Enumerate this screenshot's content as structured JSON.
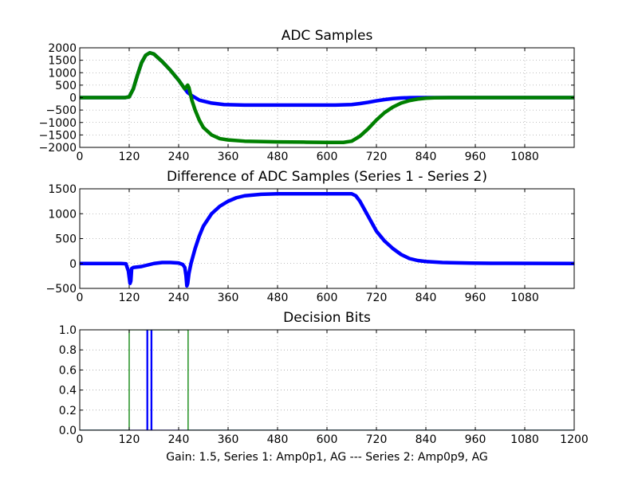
{
  "footer": "Gain: 1.5, Series 1: Amp0p1, AG --- Series 2: Amp0p9, AG",
  "colors": {
    "series1": "#0000ff",
    "series2": "#008000",
    "grid": "#808080",
    "axes": "#000000"
  },
  "chart_data": [
    {
      "id": "adc",
      "type": "line",
      "title": "ADC Samples",
      "xlim": [
        0,
        1200
      ],
      "ylim": [
        -2000,
        2000
      ],
      "xticks": [
        0,
        120,
        240,
        360,
        480,
        600,
        720,
        840,
        960,
        1080
      ],
      "yticks": [
        -2000,
        -1500,
        -1000,
        -500,
        0,
        500,
        1000,
        1500,
        2000
      ],
      "grid": true,
      "series": [
        {
          "name": "Series 1",
          "color": "#0000ff",
          "x": [
            0,
            110,
            120,
            130,
            140,
            150,
            160,
            170,
            180,
            200,
            220,
            240,
            255,
            262,
            270,
            290,
            320,
            350,
            400,
            480,
            550,
            620,
            660,
            680,
            700,
            720,
            740,
            760,
            780,
            800,
            820,
            840,
            860,
            900,
            1000,
            1200
          ],
          "y": [
            0,
            0,
            30,
            350,
            900,
            1400,
            1700,
            1800,
            1750,
            1450,
            1100,
            700,
            350,
            200,
            100,
            -100,
            -220,
            -280,
            -300,
            -300,
            -300,
            -300,
            -280,
            -240,
            -190,
            -130,
            -80,
            -40,
            -15,
            -5,
            0,
            0,
            0,
            0,
            0,
            0
          ]
        },
        {
          "name": "Series 2",
          "color": "#008000",
          "x": [
            0,
            110,
            120,
            130,
            140,
            150,
            160,
            170,
            180,
            200,
            220,
            240,
            255,
            262,
            265,
            272,
            280,
            290,
            300,
            320,
            340,
            360,
            400,
            480,
            550,
            600,
            640,
            660,
            680,
            700,
            720,
            740,
            760,
            780,
            800,
            820,
            840,
            860,
            880,
            900,
            1000,
            1200
          ],
          "y": [
            0,
            0,
            30,
            350,
            900,
            1400,
            1700,
            1800,
            1750,
            1450,
            1100,
            700,
            350,
            500,
            400,
            -100,
            -500,
            -900,
            -1200,
            -1500,
            -1650,
            -1700,
            -1750,
            -1780,
            -1790,
            -1800,
            -1800,
            -1750,
            -1550,
            -1250,
            -900,
            -600,
            -380,
            -220,
            -120,
            -60,
            -25,
            -10,
            -3,
            0,
            0,
            0
          ]
        }
      ]
    },
    {
      "id": "diff",
      "type": "line",
      "title": "Difference of ADC Samples (Series 1 - Series 2)",
      "xlim": [
        0,
        1200
      ],
      "ylim": [
        -500,
        1500
      ],
      "xticks": [
        0,
        120,
        240,
        360,
        480,
        600,
        720,
        840,
        960,
        1080
      ],
      "yticks": [
        -500,
        0,
        500,
        1000,
        1500
      ],
      "grid": true,
      "series": [
        {
          "name": "Series 1 - Series 2",
          "color": "#0000ff",
          "x": [
            0,
            50,
            100,
            112,
            118,
            122,
            124,
            126,
            130,
            150,
            180,
            200,
            220,
            240,
            250,
            255,
            258,
            260,
            262,
            265,
            270,
            275,
            280,
            290,
            300,
            320,
            340,
            360,
            380,
            400,
            440,
            480,
            550,
            620,
            660,
            670,
            680,
            690,
            700,
            710,
            720,
            740,
            760,
            780,
            800,
            820,
            840,
            860,
            880,
            900,
            950,
            1000,
            1200
          ],
          "y": [
            0,
            0,
            0,
            -5,
            -150,
            -400,
            -350,
            -100,
            -80,
            -60,
            0,
            20,
            20,
            10,
            -20,
            -80,
            -250,
            -450,
            -400,
            -200,
            0,
            150,
            300,
            550,
            750,
            1000,
            1150,
            1250,
            1320,
            1360,
            1390,
            1400,
            1400,
            1400,
            1400,
            1360,
            1250,
            1100,
            950,
            800,
            650,
            450,
            300,
            180,
            100,
            60,
            40,
            30,
            20,
            15,
            8,
            5,
            0
          ]
        }
      ]
    },
    {
      "id": "bits",
      "type": "line",
      "title": "Decision Bits",
      "xlim": [
        0,
        1200
      ],
      "ylim": [
        0,
        1
      ],
      "xticks": [
        0,
        120,
        240,
        360,
        480,
        600,
        720,
        840,
        960,
        1080,
        1200
      ],
      "yticks": [
        0.0,
        0.2,
        0.4,
        0.6,
        0.8,
        1.0
      ],
      "ytick_labels": [
        "0.0",
        "0.2",
        "0.4",
        "0.6",
        "0.8",
        "1.0"
      ],
      "grid": true,
      "series": [
        {
          "name": "Series 1",
          "color": "#0000ff",
          "x": [
            0,
            163,
            163,
            165,
            165,
            173,
            173,
            175,
            175,
            1200
          ],
          "y": [
            0,
            0,
            1,
            1,
            0,
            0,
            1,
            1,
            0,
            0
          ]
        },
        {
          "name": "Series 2",
          "color": "#008000",
          "x": [
            0,
            120,
            120,
            263,
            263,
            1200
          ],
          "y": [
            0,
            0,
            1,
            1,
            0,
            0
          ]
        }
      ]
    }
  ]
}
